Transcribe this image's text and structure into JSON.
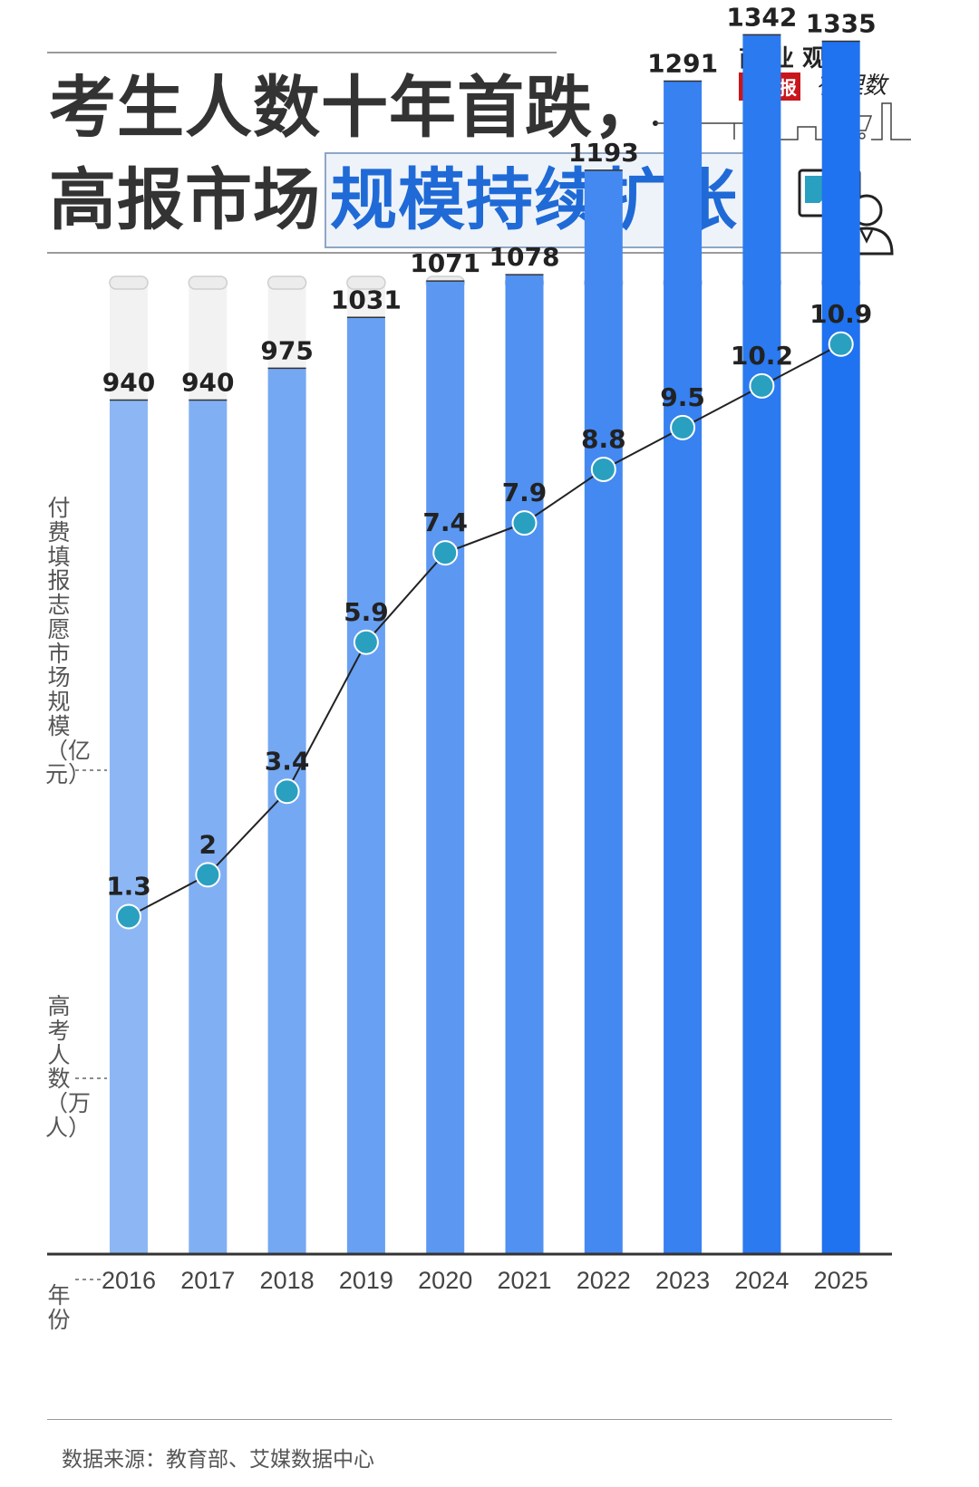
{
  "header": {
    "title_line1": "考生人数十年首跌，",
    "title_line2_plain": "高报市场",
    "title_line2_highlight": "规模持续扩张"
  },
  "logo": {
    "top": "商 业 观 察",
    "badge": "新京报",
    "script": "有理数"
  },
  "labels": {
    "y_market": "付费填报志愿市场规模（亿元）",
    "y_students": "高考人数（万人）",
    "x_year": "年份"
  },
  "footer": {
    "source": "数据来源：教育部、艾媒数据中心"
  },
  "colors": {
    "bar_light": "#8db7f4",
    "bar_dark": "#1f72f0",
    "track": "#f2f2f2",
    "marker": "#2aa0c0",
    "line": "#222222",
    "highlight_text": "#1f6ad6"
  },
  "chart_data": {
    "type": "bar",
    "categories": [
      "2016",
      "2017",
      "2018",
      "2019",
      "2020",
      "2021",
      "2022",
      "2023",
      "2024",
      "2025"
    ],
    "series": [
      {
        "values": [
          940,
          940,
          975,
          1031,
          1071,
          1078,
          1193,
          1291,
          1342,
          1335
        ]
      },
      {
        "type": "line",
        "values": [
          1.3,
          2,
          3.4,
          5.9,
          7.4,
          7.9,
          8.8,
          9.5,
          10.2,
          10.9
        ]
      }
    ],
    "value_labels": {
      "bars": [
        "940",
        "940",
        "975",
        "1031",
        "1071",
        "1078",
        "1193",
        "1291",
        "1342",
        "1335"
      ],
      "line": [
        "1.3",
        "2",
        "3.4",
        "5.9",
        "7.4",
        "7.9",
        "8.8",
        "9.5",
        "10.2",
        "10.9"
      ]
    },
    "xlabel": "年份",
    "ylabel": "高考人数（万人）",
    "ylabel2": "付费填报志愿市场规模（亿元）",
    "ylim": [
      0,
      1500
    ],
    "ylim2": [
      0,
      11
    ],
    "grid": false,
    "legend": "none"
  }
}
